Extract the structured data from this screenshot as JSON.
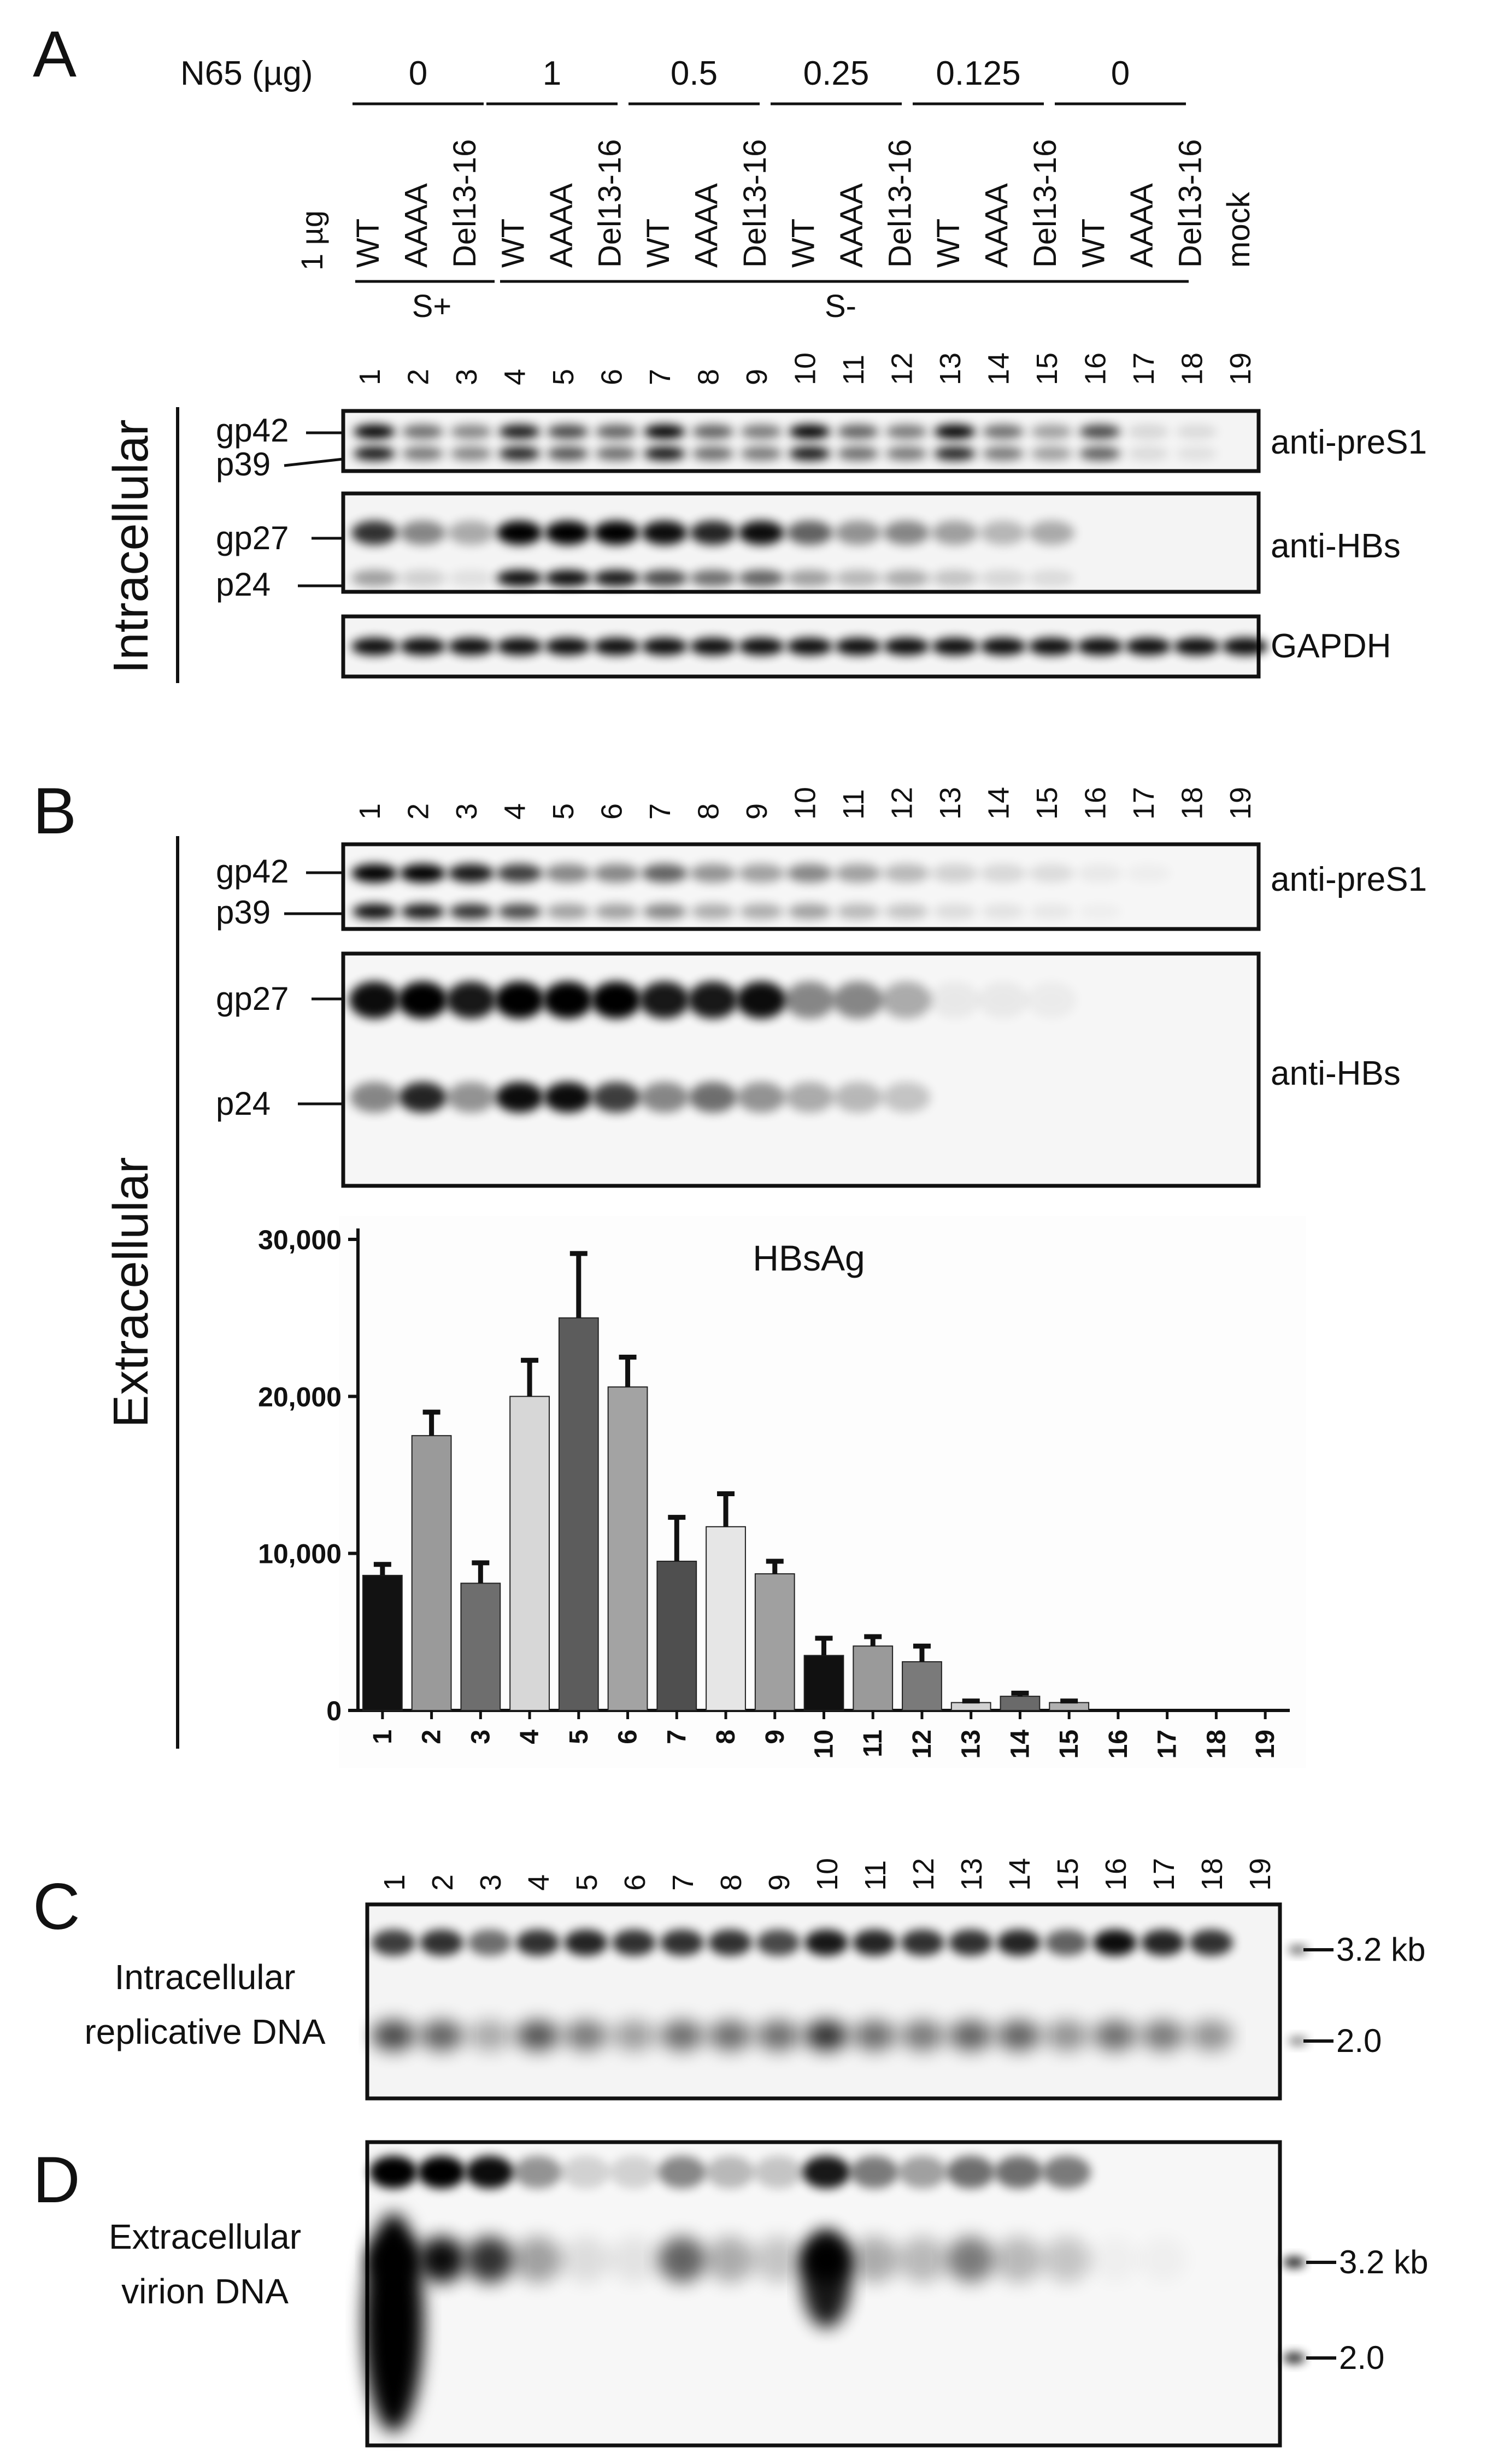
{
  "panel_letters": {
    "a": "A",
    "b": "B",
    "c": "C",
    "d": "D"
  },
  "panel_a": {
    "dose_label": "N65 (µg)",
    "doses": [
      "0",
      "1",
      "0.5",
      "0.25",
      "0.125",
      "0"
    ],
    "plasmid_label": "1 µg",
    "constructs": [
      "WT",
      "AAAA",
      "Del13-16",
      "WT",
      "AAAA",
      "Del13-16",
      "WT",
      "AAAA",
      "Del13-16",
      "WT",
      "AAAA",
      "Del13-16",
      "WT",
      "AAAA",
      "Del13-16",
      "WT",
      "AAAA",
      "Del13-16",
      "mock"
    ],
    "group_labels": {
      "s_plus": "S+",
      "s_minus": "S-"
    },
    "lanes": [
      "1",
      "2",
      "3",
      "4",
      "5",
      "6",
      "7",
      "8",
      "9",
      "10",
      "11",
      "12",
      "13",
      "14",
      "15",
      "16",
      "17",
      "18",
      "19"
    ],
    "side_label": "Intracellular",
    "blots": {
      "preS1": {
        "antibody": "anti-preS1",
        "bands": [
          "gp42",
          "p39"
        ]
      },
      "hbs": {
        "antibody": "anti-HBs",
        "bands": [
          "gp27",
          "p24"
        ]
      },
      "gapdh": {
        "antibody": "GAPDH"
      }
    }
  },
  "panel_b": {
    "side_label": "Extracellular",
    "lanes": [
      "1",
      "2",
      "3",
      "4",
      "5",
      "6",
      "7",
      "8",
      "9",
      "10",
      "11",
      "12",
      "13",
      "14",
      "15",
      "16",
      "17",
      "18",
      "19"
    ],
    "blots": {
      "preS1": {
        "antibody": "anti-preS1",
        "bands": [
          "gp42",
          "p39"
        ]
      },
      "hbs": {
        "antibody": "anti-HBs",
        "bands": [
          "gp27",
          "p24"
        ]
      }
    }
  },
  "chart_data": {
    "type": "bar",
    "title": "HBsAg",
    "xlabel": "",
    "ylabel": "",
    "categories": [
      "1",
      "2",
      "3",
      "4",
      "5",
      "6",
      "7",
      "8",
      "9",
      "10",
      "11",
      "12",
      "13",
      "14",
      "15",
      "16",
      "17",
      "18",
      "19"
    ],
    "values": [
      8600,
      17500,
      8100,
      20000,
      25000,
      20600,
      9500,
      11700,
      8700,
      3500,
      4100,
      3100,
      500,
      900,
      500,
      0,
      0,
      0,
      0
    ],
    "errors": [
      700,
      1500,
      1300,
      2300,
      4100,
      1900,
      2800,
      2100,
      800,
      1100,
      600,
      1000,
      100,
      200,
      100,
      0,
      0,
      0,
      0
    ],
    "bar_colors": [
      "#121212",
      "#9a9a9a",
      "#6e6e6e",
      "#d7d7d7",
      "#5c5c5c",
      "#a3a3a3",
      "#4f4f4f",
      "#e6e6e6",
      "#a0a0a0",
      "#111111",
      "#9a9a9a",
      "#7a7a7a",
      "#d2d2d2",
      "#6a6a6a",
      "#b0b0b0",
      "#999999",
      "#999999",
      "#999999",
      "#999999"
    ],
    "ylim": [
      0,
      30000
    ],
    "yticks": [
      "0",
      "10,000",
      "20,000",
      "30,000"
    ],
    "grid": false
  },
  "panel_c": {
    "lanes": [
      "1",
      "2",
      "3",
      "4",
      "5",
      "6",
      "7",
      "8",
      "9",
      "10",
      "11",
      "12",
      "13",
      "14",
      "15",
      "16",
      "17",
      "18",
      "19"
    ],
    "label_line1": "Intracellular",
    "label_line2": "replicative DNA",
    "markers": [
      "3.2 kb",
      "2.0"
    ]
  },
  "panel_d": {
    "label_line1": "Extracellular",
    "label_line2": "virion DNA",
    "markers": [
      "3.2 kb",
      "2.0"
    ]
  }
}
